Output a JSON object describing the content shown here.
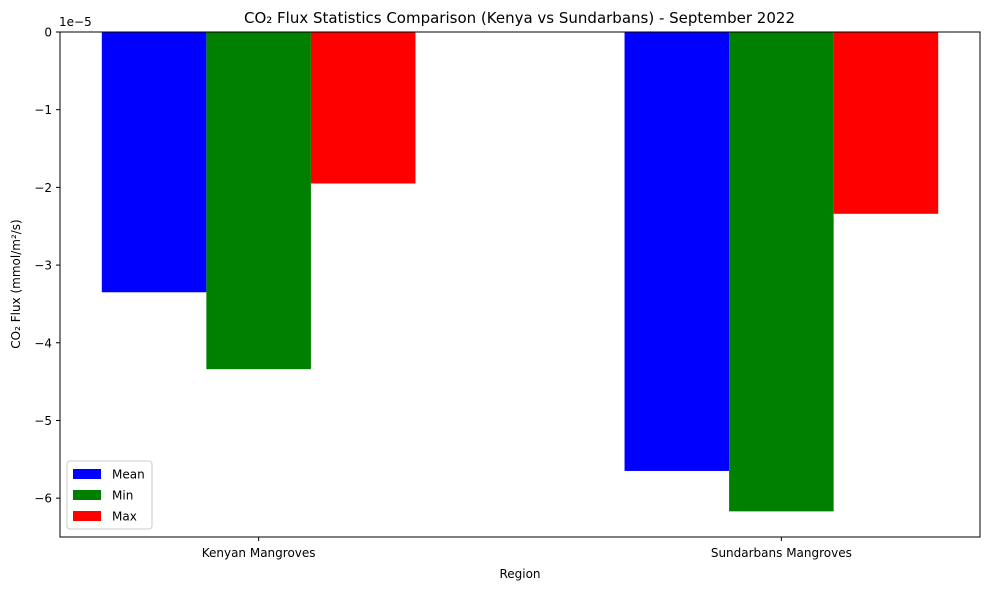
{
  "chart_data": {
    "type": "bar",
    "title": "CO₂ Flux Statistics Comparison (Kenya vs Sundarbans) - September 2022",
    "xlabel": "Region",
    "ylabel": "CO₂ Flux (mmol/m²/s)",
    "y_offset_label": "1e−5",
    "y_scale_factor": 1e-05,
    "categories": [
      "Kenyan Mangroves",
      "Sundarbans Mangroves"
    ],
    "series": [
      {
        "name": "Mean",
        "color": "#0000ff",
        "values": [
          -3.35e-05,
          -5.65e-05
        ]
      },
      {
        "name": "Min",
        "color": "#008000",
        "values": [
          -4.34e-05,
          -6.17e-05
        ]
      },
      {
        "name": "Max",
        "color": "#ff0000",
        "values": [
          -1.95e-05,
          -2.34e-05
        ]
      }
    ],
    "ylim": [
      -6.5e-05,
      0
    ],
    "yticks": [
      0,
      -1e-05,
      -2e-05,
      -3e-05,
      -4e-05,
      -5e-05,
      -6e-05
    ],
    "ytick_labels": [
      "0",
      "−1",
      "−2",
      "−3",
      "−4",
      "−5",
      "−6"
    ],
    "legend_location": "lower-left",
    "grid": false
  }
}
